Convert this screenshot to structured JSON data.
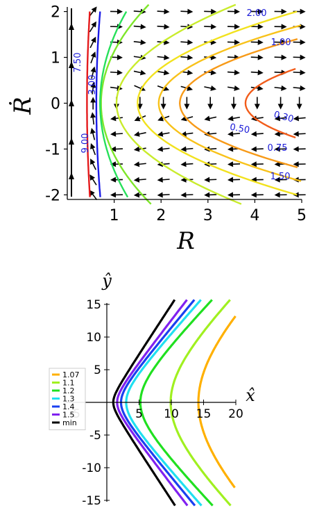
{
  "chart_data": [
    {
      "type": "line",
      "subtype": "contour-with-direction-field",
      "xlabel": "R",
      "ylabel": "Ṙ",
      "xlim": [
        0,
        5
      ],
      "ylim": [
        -2.1,
        2.1
      ],
      "x_ticks": [
        "1",
        "2",
        "3",
        "4",
        "5"
      ],
      "y_ticks": [
        "2",
        "1",
        "0",
        "-1",
        "-2"
      ],
      "levels": [
        {
          "label": "9.00",
          "value": 9.0,
          "color": "#1a1ae6"
        },
        {
          "label": "7.50",
          "value": 7.5,
          "color": "#e41a1c"
        },
        {
          "label": "3.00",
          "value": 3.0,
          "color": "#26e05a"
        },
        {
          "label": "2.00",
          "value": 2.0,
          "color": "#7ee62a"
        },
        {
          "label": "1.50",
          "value": 1.5,
          "color": "#c9ec2c"
        },
        {
          "label": "1.00",
          "value": 1.0,
          "color": "#f2e21e"
        },
        {
          "label": "0.75",
          "value": 0.75,
          "color": "#f8c21a"
        },
        {
          "label": "0.50",
          "value": 0.5,
          "color": "#f79a18"
        },
        {
          "label": "0.30",
          "value": 0.3,
          "color": "#f25c1a"
        }
      ],
      "contour_label_texts": [
        "2.00",
        "1.00",
        "7.50",
        "3.00",
        "0.30",
        "0.50",
        "0.75",
        "1.50",
        "9.00"
      ],
      "grid": false
    },
    {
      "type": "line",
      "subtype": "hyperbola-family",
      "xlabel": "x̂",
      "ylabel": "ŷ",
      "xlim": [
        -22,
        20
      ],
      "ylim": [
        -16,
        16
      ],
      "x_ticks": [
        "5",
        "10",
        "15",
        "20"
      ],
      "x_tick_hidden": "-5",
      "y_ticks": [
        "15",
        "10",
        "5",
        "-5",
        "-10",
        "-15"
      ],
      "legend_position": "left",
      "series": [
        {
          "name": "1.07",
          "color": "#ffb000",
          "vertex_x": 14.2
        },
        {
          "name": "1.1",
          "color": "#a0f020",
          "vertex_x": 9.9
        },
        {
          "name": "1.2",
          "color": "#20e020",
          "vertex_x": 5.2
        },
        {
          "name": "1.3",
          "color": "#20e0f0",
          "vertex_x": 3.0
        },
        {
          "name": "1.4",
          "color": "#1a40f0",
          "vertex_x": 2.2
        },
        {
          "name": "1.5",
          "color": "#8020f0",
          "vertex_x": 1.6
        },
        {
          "name": "min",
          "color": "#000000",
          "vertex_x": 1.0
        }
      ],
      "grid": false
    }
  ]
}
